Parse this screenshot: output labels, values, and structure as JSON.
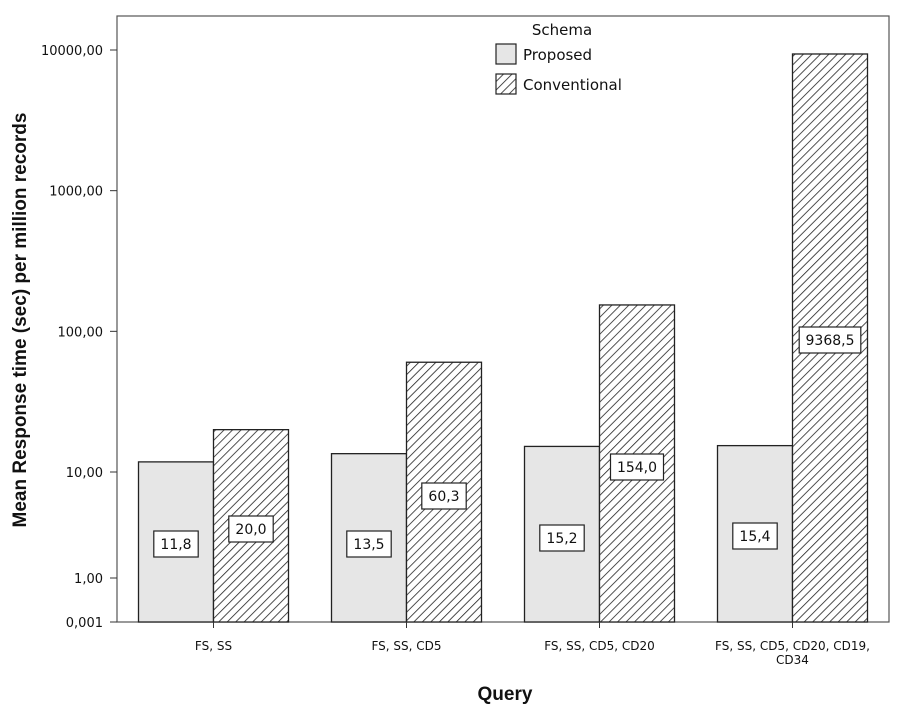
{
  "chart_data": {
    "type": "bar",
    "scale": "log",
    "ylabel": "Mean Response time (sec) per million records",
    "xlabel": "Query",
    "y_ticks": [
      "0,001",
      "1,00",
      "10,00",
      "100,00",
      "1000,00",
      "10000,00"
    ],
    "categories": [
      [
        "FS, SS"
      ],
      [
        "FS, SS, CD5"
      ],
      [
        "FS, SS, CD5, CD20"
      ],
      [
        "FS, SS, CD5, CD20, CD19,",
        "CD34"
      ]
    ],
    "legend_title": "Schema",
    "legend_position": "top-center",
    "series": [
      {
        "name": "Proposed",
        "values": [
          11.8,
          13.5,
          15.2,
          15.4
        ],
        "labels": [
          "11,8",
          "13,5",
          "15,2",
          "15,4"
        ],
        "fill": "solid",
        "color": "#e6e6e6"
      },
      {
        "name": "Conventional",
        "values": [
          20.0,
          60.3,
          154.0,
          9368.5
        ],
        "labels": [
          "20,0",
          "60,3",
          "154,0",
          "9368,5"
        ],
        "fill": "hatched",
        "color": "#ffffff"
      }
    ]
  }
}
